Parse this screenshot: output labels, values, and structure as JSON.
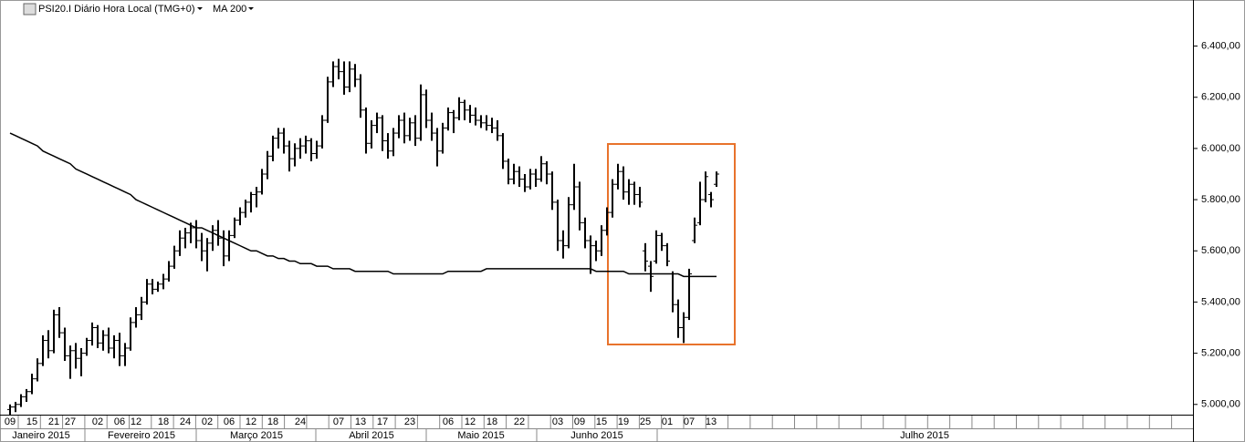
{
  "chart_data": {
    "type": "ohlc",
    "categories": [
      "09",
      null,
      null,
      null,
      "15",
      null,
      null,
      null,
      "21",
      null,
      null,
      "27",
      null,
      null,
      null,
      null,
      "02",
      null,
      null,
      null,
      "06",
      null,
      null,
      "12",
      null,
      null,
      null,
      null,
      "18",
      null,
      null,
      null,
      "24",
      null,
      null,
      null,
      "02",
      null,
      null,
      null,
      "06",
      null,
      null,
      null,
      "12",
      null,
      null,
      null,
      "18",
      null,
      null,
      null,
      null,
      "24",
      null,
      null,
      null,
      null,
      null,
      null,
      "07",
      null,
      null,
      null,
      "13",
      null,
      null,
      null,
      "17",
      null,
      null,
      null,
      null,
      "23",
      null,
      null,
      null,
      null,
      null,
      null,
      "06",
      null,
      null,
      null,
      "12",
      null,
      null,
      null,
      "18",
      null,
      null,
      null,
      null,
      "22",
      null,
      null,
      null,
      null,
      null,
      null,
      "03",
      null,
      null,
      null,
      "09",
      null,
      null,
      null,
      "15",
      null,
      null,
      null,
      "19",
      null,
      null,
      null,
      "25",
      null,
      null,
      null,
      "01",
      null,
      null,
      null,
      "07",
      null,
      null,
      null,
      "13",
      null
    ],
    "months": [
      "Janeiro 2015",
      "Fevereiro 2015",
      "Março 2015",
      "Abril 2015",
      "Maio 2015",
      "Junho 2015",
      "Julho 2015"
    ],
    "series": [
      {
        "name": "PSI20.I Diário Hora Local (TMG+0)",
        "type": "ohlc",
        "color": "#000000",
        "values": [
          [
            4980,
            5000,
            4960,
            4990
          ],
          [
            4990,
            5010,
            4970,
            5000
          ],
          [
            5000,
            5040,
            4990,
            5030
          ],
          [
            5030,
            5060,
            5010,
            5050
          ],
          [
            5050,
            5120,
            5040,
            5100
          ],
          [
            5100,
            5180,
            5090,
            5160
          ],
          [
            5160,
            5270,
            5150,
            5250
          ],
          [
            5250,
            5290,
            5180,
            5210
          ],
          [
            5210,
            5370,
            5200,
            5350
          ],
          [
            5350,
            5380,
            5260,
            5280
          ],
          [
            5280,
            5300,
            5170,
            5190
          ],
          [
            5190,
            5230,
            5100,
            5210
          ],
          [
            5210,
            5240,
            5140,
            5180
          ],
          [
            5180,
            5220,
            5110,
            5200
          ],
          [
            5200,
            5260,
            5190,
            5250
          ],
          [
            5250,
            5320,
            5230,
            5300
          ],
          [
            5300,
            5310,
            5220,
            5240
          ],
          [
            5240,
            5290,
            5210,
            5270
          ],
          [
            5270,
            5300,
            5200,
            5220
          ],
          [
            5220,
            5270,
            5180,
            5250
          ],
          [
            5250,
            5280,
            5150,
            5190
          ],
          [
            5190,
            5240,
            5150,
            5220
          ],
          [
            5220,
            5340,
            5210,
            5320
          ],
          [
            5320,
            5380,
            5300,
            5350
          ],
          [
            5350,
            5420,
            5330,
            5400
          ],
          [
            5400,
            5490,
            5390,
            5470
          ],
          [
            5470,
            5490,
            5430,
            5450
          ],
          [
            5450,
            5480,
            5440,
            5470
          ],
          [
            5470,
            5510,
            5450,
            5490
          ],
          [
            5490,
            5560,
            5480,
            5540
          ],
          [
            5540,
            5620,
            5530,
            5600
          ],
          [
            5600,
            5680,
            5580,
            5650
          ],
          [
            5650,
            5690,
            5610,
            5670
          ],
          [
            5670,
            5710,
            5630,
            5690
          ],
          [
            5690,
            5720,
            5610,
            5640
          ],
          [
            5640,
            5670,
            5560,
            5600
          ],
          [
            5600,
            5650,
            5520,
            5630
          ],
          [
            5630,
            5700,
            5600,
            5680
          ],
          [
            5680,
            5720,
            5620,
            5650
          ],
          [
            5650,
            5680,
            5540,
            5580
          ],
          [
            5580,
            5680,
            5560,
            5660
          ],
          [
            5660,
            5730,
            5650,
            5720
          ],
          [
            5720,
            5770,
            5700,
            5750
          ],
          [
            5750,
            5800,
            5730,
            5790
          ],
          [
            5790,
            5830,
            5750,
            5820
          ],
          [
            5820,
            5850,
            5770,
            5830
          ],
          [
            5830,
            5920,
            5820,
            5900
          ],
          [
            5900,
            5990,
            5880,
            5970
          ],
          [
            5970,
            6050,
            5950,
            6040
          ],
          [
            6040,
            6080,
            6000,
            6060
          ],
          [
            6060,
            6080,
            5980,
            6010
          ],
          [
            6010,
            6030,
            5910,
            5960
          ],
          [
            5960,
            6020,
            5930,
            6000
          ],
          [
            6000,
            6040,
            5960,
            6010
          ],
          [
            6010,
            6050,
            5980,
            6030
          ],
          [
            6030,
            6040,
            5950,
            5980
          ],
          [
            5980,
            6030,
            5960,
            6010
          ],
          [
            6010,
            6130,
            6000,
            6110
          ],
          [
            6110,
            6280,
            6100,
            6260
          ],
          [
            6260,
            6340,
            6240,
            6320
          ],
          [
            6320,
            6350,
            6270,
            6300
          ],
          [
            6300,
            6340,
            6210,
            6240
          ],
          [
            6240,
            6340,
            6220,
            6310
          ],
          [
            6310,
            6330,
            6240,
            6270
          ],
          [
            6270,
            6290,
            6120,
            6150
          ],
          [
            6150,
            6160,
            5980,
            6020
          ],
          [
            6020,
            6110,
            6000,
            6090
          ],
          [
            6090,
            6140,
            6060,
            6120
          ],
          [
            6120,
            6130,
            5990,
            6030
          ],
          [
            6030,
            6060,
            5960,
            5990
          ],
          [
            5990,
            6080,
            5970,
            6060
          ],
          [
            6060,
            6130,
            6040,
            6110
          ],
          [
            6110,
            6140,
            6020,
            6050
          ],
          [
            6050,
            6120,
            6030,
            6100
          ],
          [
            6100,
            6130,
            6010,
            6040
          ],
          [
            6040,
            6250,
            6030,
            6210
          ],
          [
            6210,
            6230,
            6080,
            6110
          ],
          [
            6110,
            6140,
            6030,
            6060
          ],
          [
            6060,
            6080,
            5930,
            5990
          ],
          [
            5990,
            6100,
            5980,
            6080
          ],
          [
            6080,
            6160,
            6070,
            6140
          ],
          [
            6140,
            6150,
            6060,
            6120
          ],
          [
            6120,
            6200,
            6110,
            6180
          ],
          [
            6180,
            6190,
            6110,
            6150
          ],
          [
            6150,
            6170,
            6100,
            6130
          ],
          [
            6130,
            6160,
            6090,
            6110
          ],
          [
            6110,
            6130,
            6080,
            6100
          ],
          [
            6100,
            6130,
            6070,
            6090
          ],
          [
            6090,
            6120,
            6060,
            6080
          ],
          [
            6080,
            6110,
            6030,
            6050
          ],
          [
            6050,
            6060,
            5920,
            5950
          ],
          [
            5950,
            5960,
            5860,
            5880
          ],
          [
            5880,
            5940,
            5860,
            5910
          ],
          [
            5910,
            5930,
            5850,
            5880
          ],
          [
            5880,
            5900,
            5830,
            5850
          ],
          [
            5850,
            5920,
            5840,
            5900
          ],
          [
            5900,
            5920,
            5850,
            5880
          ],
          [
            5880,
            5970,
            5870,
            5940
          ],
          [
            5940,
            5950,
            5860,
            5900
          ],
          [
            5900,
            5910,
            5760,
            5790
          ],
          [
            5790,
            5800,
            5600,
            5640
          ],
          [
            5640,
            5680,
            5570,
            5620
          ],
          [
            5620,
            5810,
            5610,
            5780
          ],
          [
            5780,
            5940,
            5760,
            5850
          ],
          [
            5850,
            5870,
            5680,
            5710
          ],
          [
            5710,
            5730,
            5610,
            5640
          ],
          [
            5640,
            5660,
            5510,
            5620
          ],
          [
            5620,
            5640,
            5560,
            5600
          ],
          [
            5600,
            5700,
            5580,
            5680
          ],
          [
            5680,
            5770,
            5660,
            5750
          ],
          [
            5750,
            5880,
            5730,
            5860
          ],
          [
            5860,
            5940,
            5840,
            5910
          ],
          [
            5910,
            5930,
            5800,
            5830
          ],
          [
            5830,
            5880,
            5780,
            5860
          ],
          [
            5860,
            5870,
            5780,
            5820
          ],
          [
            5820,
            5850,
            5770,
            5790
          ],
          [
            5600,
            5630,
            5520,
            5560
          ],
          [
            5540,
            5560,
            5440,
            5500
          ],
          [
            5560,
            5680,
            5550,
            5660
          ],
          [
            5660,
            5670,
            5600,
            5620
          ],
          [
            5620,
            5630,
            5540,
            5560
          ],
          [
            5510,
            5520,
            5360,
            5390
          ],
          [
            5390,
            5410,
            5260,
            5300
          ],
          [
            5300,
            5360,
            5240,
            5340
          ],
          [
            5340,
            5530,
            5330,
            5510
          ],
          [
            5640,
            5730,
            5630,
            5700
          ],
          [
            5710,
            5870,
            5700,
            5800
          ],
          [
            5800,
            5910,
            5790,
            5890
          ],
          [
            5820,
            5830,
            5770,
            5800
          ],
          [
            5860,
            5910,
            5850,
            5900
          ]
        ]
      },
      {
        "name": "MA 200",
        "type": "line",
        "color": "#000000",
        "values": [
          6060,
          6050,
          6040,
          6030,
          6020,
          6010,
          5990,
          5980,
          5970,
          5960,
          5950,
          5940,
          5920,
          5910,
          5900,
          5890,
          5880,
          5870,
          5860,
          5850,
          5840,
          5830,
          5820,
          5800,
          5790,
          5780,
          5770,
          5760,
          5750,
          5740,
          5730,
          5720,
          5710,
          5700,
          5690,
          5690,
          5680,
          5670,
          5660,
          5650,
          5640,
          5630,
          5620,
          5610,
          5600,
          5600,
          5590,
          5580,
          5580,
          5570,
          5570,
          5560,
          5560,
          5550,
          5550,
          5550,
          5540,
          5540,
          5540,
          5530,
          5530,
          5530,
          5530,
          5520,
          5520,
          5520,
          5520,
          5520,
          5520,
          5520,
          5510,
          5510,
          5510,
          5510,
          5510,
          5510,
          5510,
          5510,
          5510,
          5510,
          5520,
          5520,
          5520,
          5520,
          5520,
          5520,
          5520,
          5530,
          5530,
          5530,
          5530,
          5530,
          5530,
          5530,
          5530,
          5530,
          5530,
          5530,
          5530,
          5530,
          5530,
          5530,
          5530,
          5530,
          5530,
          5530,
          5530,
          5520,
          5520,
          5520,
          5520,
          5520,
          5520,
          5510,
          5510,
          5510,
          5510,
          5510,
          5510,
          5510,
          5510,
          5510,
          5510,
          5500,
          5500,
          5500,
          5500,
          5500,
          5500,
          5500
        ]
      }
    ],
    "ylim": [
      4960,
      6580
    ],
    "yticks": [
      {
        "value": 5000,
        "label": "5.000,00"
      },
      {
        "value": 5200,
        "label": "5.200,00"
      },
      {
        "value": 5400,
        "label": "5.400,00"
      },
      {
        "value": 5600,
        "label": "5.600,00"
      },
      {
        "value": 5800,
        "label": "5.800,00"
      },
      {
        "value": 6000,
        "label": "6.000,00"
      },
      {
        "value": 6200,
        "label": "6.200,00"
      },
      {
        "value": 6400,
        "label": "6.400,00"
      }
    ]
  }
}
